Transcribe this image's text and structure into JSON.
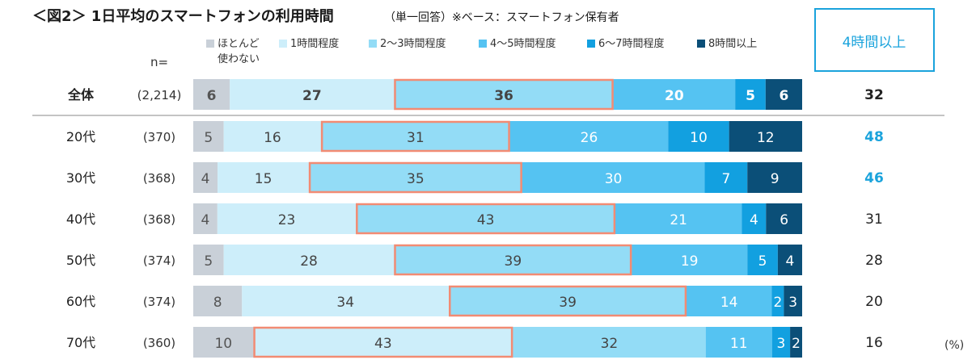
{
  "title": "＜図2＞ 1日平均のスマートフォンの利用時間",
  "subtitle": "（単一回答）※ベース：スマートフォン保有者",
  "n_label": "n=",
  "unit": "(%)",
  "right_header": "4時間以上",
  "colors": {
    "segments": [
      "#c9d0d8",
      "#cdeefa",
      "#93dcf6",
      "#55c3f2",
      "#12a0e0",
      "#0b4f78"
    ],
    "highlight": "#f28b73",
    "right_highlight": "#1aa3dc",
    "divider": "#888888"
  },
  "legend": [
    "ほとんど\n使わない",
    "1時間程度",
    "2～3時間程度",
    "4～5時間程度",
    "6～7時間程度",
    "8時間以上"
  ],
  "chart_data": {
    "type": "bar",
    "orientation": "horizontal-stacked-100",
    "categories": [
      "全体",
      "20代",
      "30代",
      "40代",
      "50代",
      "60代",
      "70代"
    ],
    "n": [
      "(2,214)",
      "(370)",
      "(368)",
      "(368)",
      "(374)",
      "(374)",
      "(360)"
    ],
    "series": [
      {
        "name": "ほとんど使わない",
        "values": [
          6,
          5,
          4,
          4,
          5,
          8,
          10
        ]
      },
      {
        "name": "1時間程度",
        "values": [
          27,
          16,
          15,
          23,
          28,
          34,
          43
        ]
      },
      {
        "name": "2～3時間程度",
        "values": [
          36,
          31,
          35,
          43,
          39,
          39,
          32
        ]
      },
      {
        "name": "4～5時間程度",
        "values": [
          20,
          26,
          30,
          21,
          19,
          14,
          11
        ]
      },
      {
        "name": "6～7時間程度",
        "values": [
          5,
          10,
          7,
          4,
          5,
          2,
          3
        ]
      },
      {
        "name": "8時間以上",
        "values": [
          6,
          12,
          9,
          6,
          4,
          3,
          2
        ]
      }
    ],
    "highlight_segment": [
      2,
      2,
      2,
      2,
      2,
      2,
      1
    ],
    "right_values": [
      32,
      48,
      46,
      31,
      28,
      20,
      16
    ],
    "right_highlight": [
      false,
      true,
      true,
      false,
      false,
      false,
      false
    ],
    "xlim": [
      0,
      100
    ]
  }
}
